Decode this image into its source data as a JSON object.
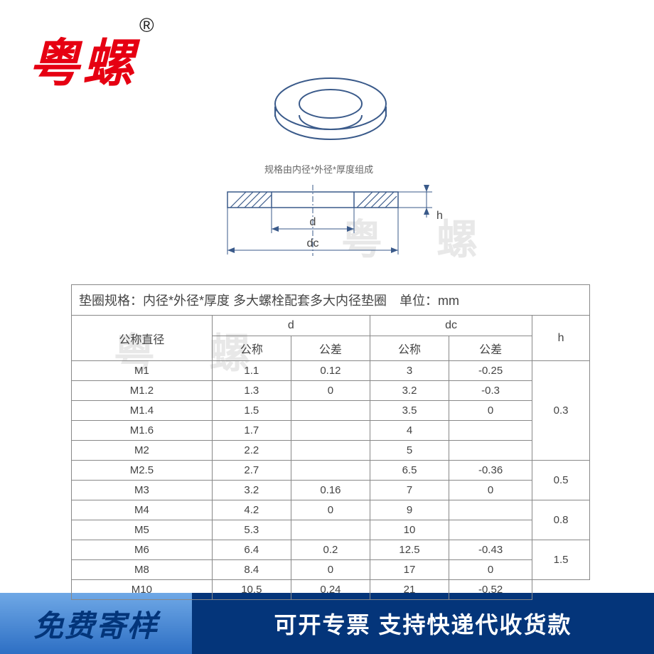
{
  "brand": {
    "name": "粤螺",
    "registered": "®"
  },
  "diagram": {
    "caption": "规格由内径*外径*厚度组成",
    "label_d": "d",
    "label_dc": "dc",
    "label_h": "h",
    "stroke": "#3a5a8a",
    "hatch": "#3a5a8a"
  },
  "watermark": "粤 螺",
  "table": {
    "caption": "垫圈规格：内径*外径*厚度 多大螺栓配套多大内径垫圈　单位：mm",
    "header": {
      "nominal": "公称直径",
      "d": "d",
      "dc": "dc",
      "h": "h",
      "nominal_sub": "公称",
      "tolerance_sub": "公差"
    },
    "rows": [
      {
        "nom": "M1",
        "d_nom": "1.1",
        "d_tol": "0.12",
        "dc_nom": "3",
        "dc_tol": "-0.25",
        "h": "0.3",
        "h_span": 5
      },
      {
        "nom": "M1.2",
        "d_nom": "1.3",
        "d_tol": "0",
        "dc_nom": "3.2",
        "dc_tol": "-0.3",
        "h": "",
        "h_span": 0
      },
      {
        "nom": "M1.4",
        "d_nom": "1.5",
        "d_tol": "",
        "dc_nom": "3.5",
        "dc_tol": "0",
        "h": "",
        "h_span": 0
      },
      {
        "nom": "M1.6",
        "d_nom": "1.7",
        "d_tol": "",
        "dc_nom": "4",
        "dc_tol": "",
        "h": "",
        "h_span": 0
      },
      {
        "nom": "M2",
        "d_nom": "2.2",
        "d_tol": "",
        "dc_nom": "5",
        "dc_tol": "",
        "h": "",
        "h_span": 0
      },
      {
        "nom": "M2.5",
        "d_nom": "2.7",
        "d_tol": "",
        "dc_nom": "6.5",
        "dc_tol": "-0.36",
        "h": "0.5",
        "h_span": 2
      },
      {
        "nom": "M3",
        "d_nom": "3.2",
        "d_tol": "0.16",
        "dc_nom": "7",
        "dc_tol": "0",
        "h": "",
        "h_span": 0
      },
      {
        "nom": "M4",
        "d_nom": "4.2",
        "d_tol": "0",
        "dc_nom": "9",
        "dc_tol": "",
        "h": "0.8",
        "h_span": 2
      },
      {
        "nom": "M5",
        "d_nom": "5.3",
        "d_tol": "",
        "dc_nom": "10",
        "dc_tol": "",
        "h": "",
        "h_span": 0
      },
      {
        "nom": "M6",
        "d_nom": "6.4",
        "d_tol": "0.2",
        "dc_nom": "12.5",
        "dc_tol": "-0.43",
        "h": "1.5",
        "h_span": 2
      },
      {
        "nom": "M8",
        "d_nom": "8.4",
        "d_tol": "0",
        "dc_nom": "17",
        "dc_tol": "0",
        "h": "",
        "h_span": 0
      },
      {
        "nom": "M10",
        "d_nom": "10.5",
        "d_tol": "0.24",
        "dc_nom": "21",
        "dc_tol": "-0.52",
        "h": "",
        "h_span": 0
      }
    ]
  },
  "footer": {
    "left": "免费寄样",
    "right": "可开专票 支持快递代收货款"
  }
}
